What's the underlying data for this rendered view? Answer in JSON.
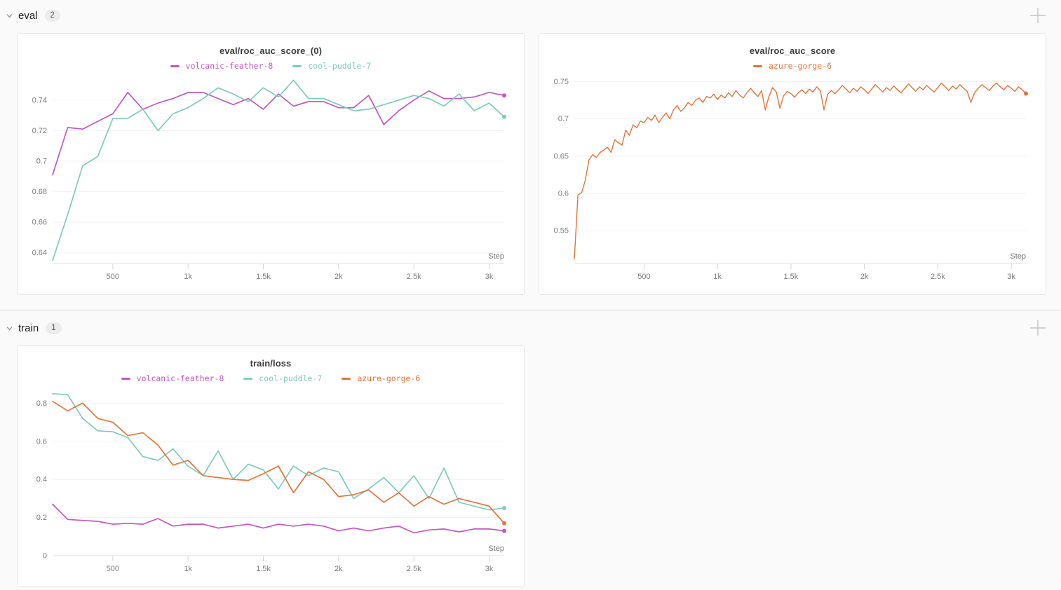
{
  "sections": [
    {
      "label": "eval",
      "count": "2"
    },
    {
      "label": "train",
      "count": "1"
    }
  ],
  "colors": {
    "magenta": "#C557BD",
    "teal": "#7FCBBC",
    "orange": "#E57439",
    "grid": "#f1f1f1",
    "axis": "#e0e0e0",
    "zero_line": "#d7d7d7",
    "tick_mark": "#d4d4d4",
    "tick_label": "#7b7b7b",
    "panel_border": "#e5e5e5",
    "page_bg": "#fafafa"
  },
  "chart_data": [
    {
      "type": "line",
      "title": "eval/roc_auc_score_(0)",
      "xlabel": "Step",
      "grid": true,
      "legend_position": "top",
      "xlim": [
        100,
        3100
      ],
      "ylim": [
        0.633,
        0.7555
      ],
      "xticks": [
        [
          500,
          "500"
        ],
        [
          1000,
          "1k"
        ],
        [
          1500,
          "1.5k"
        ],
        [
          2000,
          "2k"
        ],
        [
          2500,
          "2.5k"
        ],
        [
          3000,
          "3k"
        ]
      ],
      "yticks": [
        [
          0.64,
          "0.64"
        ],
        [
          0.66,
          "0.66"
        ],
        [
          0.68,
          "0.68"
        ],
        [
          0.7,
          "0.7"
        ],
        [
          0.72,
          "0.72"
        ],
        [
          0.74,
          "0.74"
        ]
      ],
      "series": [
        {
          "name": "volcanic-feather-8",
          "color": "#C557BD",
          "x_start": 100,
          "x_step": 100,
          "values": [
            0.691,
            0.722,
            0.721,
            0.726,
            0.731,
            0.745,
            0.734,
            0.738,
            0.741,
            0.745,
            0.745,
            0.741,
            0.737,
            0.741,
            0.734,
            0.744,
            0.736,
            0.739,
            0.739,
            0.735,
            0.735,
            0.743,
            0.724,
            0.733,
            0.74,
            0.746,
            0.741,
            0.741,
            0.742,
            0.745,
            0.743
          ]
        },
        {
          "name": "cool-puddle-7",
          "color": "#7FCBBC",
          "x_start": 100,
          "x_step": 100,
          "values": [
            0.635,
            0.665,
            0.697,
            0.703,
            0.728,
            0.728,
            0.734,
            0.72,
            0.731,
            0.735,
            0.741,
            0.748,
            0.744,
            0.739,
            0.748,
            0.742,
            0.753,
            0.741,
            0.741,
            0.737,
            0.733,
            0.734,
            0.737,
            0.74,
            0.743,
            0.741,
            0.736,
            0.744,
            0.733,
            0.738,
            0.729
          ]
        }
      ]
    },
    {
      "type": "line",
      "title": "eval/roc_auc_score",
      "xlabel": "Step",
      "grid": true,
      "legend_position": "top",
      "xlim": [
        25,
        3100
      ],
      "ylim": [
        0.506,
        0.757
      ],
      "xticks": [
        [
          500,
          "500"
        ],
        [
          1000,
          "1k"
        ],
        [
          1500,
          "1.5k"
        ],
        [
          2000,
          "2k"
        ],
        [
          2500,
          "2.5k"
        ],
        [
          3000,
          "3k"
        ]
      ],
      "yticks": [
        [
          0.55,
          "0.55"
        ],
        [
          0.6,
          "0.6"
        ],
        [
          0.65,
          "0.65"
        ],
        [
          0.7,
          "0.7"
        ],
        [
          0.75,
          "0.75"
        ]
      ],
      "series": [
        {
          "name": "azure-gorge-6",
          "color": "#E57439",
          "x_start": 25,
          "x_step": 25,
          "values": [
            0.512,
            0.598,
            0.601,
            0.618,
            0.645,
            0.652,
            0.648,
            0.655,
            0.658,
            0.662,
            0.655,
            0.672,
            0.668,
            0.665,
            0.685,
            0.678,
            0.692,
            0.688,
            0.697,
            0.695,
            0.702,
            0.698,
            0.705,
            0.695,
            0.702,
            0.708,
            0.7,
            0.712,
            0.718,
            0.71,
            0.715,
            0.722,
            0.718,
            0.725,
            0.728,
            0.722,
            0.73,
            0.728,
            0.733,
            0.726,
            0.732,
            0.728,
            0.735,
            0.73,
            0.738,
            0.732,
            0.728,
            0.735,
            0.741,
            0.735,
            0.73,
            0.738,
            0.712,
            0.73,
            0.742,
            0.736,
            0.714,
            0.731,
            0.737,
            0.734,
            0.729,
            0.735,
            0.739,
            0.734,
            0.74,
            0.736,
            0.743,
            0.738,
            0.712,
            0.733,
            0.738,
            0.734,
            0.739,
            0.745,
            0.74,
            0.735,
            0.741,
            0.737,
            0.743,
            0.739,
            0.734,
            0.74,
            0.746,
            0.741,
            0.736,
            0.742,
            0.738,
            0.744,
            0.739,
            0.735,
            0.741,
            0.747,
            0.742,
            0.737,
            0.743,
            0.739,
            0.745,
            0.74,
            0.736,
            0.742,
            0.748,
            0.743,
            0.738,
            0.744,
            0.74,
            0.746,
            0.741,
            0.737,
            0.722,
            0.735,
            0.741,
            0.746,
            0.742,
            0.738,
            0.744,
            0.748,
            0.743,
            0.739,
            0.745,
            0.741,
            0.737,
            0.743,
            0.739,
            0.734
          ]
        }
      ]
    },
    {
      "type": "line",
      "title": "train/loss",
      "xlabel": "Step",
      "grid": true,
      "legend_position": "top",
      "xlim": [
        100,
        3100
      ],
      "ylim": [
        0,
        0.875
      ],
      "xticks": [
        [
          500,
          "500"
        ],
        [
          1000,
          "1k"
        ],
        [
          1500,
          "1.5k"
        ],
        [
          2000,
          "2k"
        ],
        [
          2500,
          "2.5k"
        ],
        [
          3000,
          "3k"
        ]
      ],
      "yticks": [
        [
          0,
          "0"
        ],
        [
          0.2,
          "0.2"
        ],
        [
          0.4,
          "0.4"
        ],
        [
          0.6,
          "0.6"
        ],
        [
          0.8,
          "0.8"
        ]
      ],
      "series": [
        {
          "name": "volcanic-feather-8",
          "color": "#C557BD",
          "x_start": 100,
          "x_step": 100,
          "values": [
            0.27,
            0.19,
            0.185,
            0.18,
            0.165,
            0.17,
            0.165,
            0.195,
            0.155,
            0.165,
            0.165,
            0.145,
            0.155,
            0.165,
            0.145,
            0.165,
            0.155,
            0.165,
            0.155,
            0.13,
            0.145,
            0.13,
            0.145,
            0.155,
            0.12,
            0.135,
            0.14,
            0.125,
            0.14,
            0.14,
            0.13
          ]
        },
        {
          "name": "cool-puddle-7",
          "color": "#7FCBBC",
          "x_start": 100,
          "x_step": 100,
          "values": [
            0.85,
            0.845,
            0.72,
            0.655,
            0.65,
            0.62,
            0.52,
            0.5,
            0.56,
            0.47,
            0.42,
            0.55,
            0.4,
            0.48,
            0.45,
            0.35,
            0.47,
            0.42,
            0.46,
            0.44,
            0.3,
            0.35,
            0.41,
            0.33,
            0.42,
            0.3,
            0.46,
            0.28,
            0.26,
            0.24,
            0.25
          ]
        },
        {
          "name": "azure-gorge-6",
          "color": "#E57439",
          "x_start": 100,
          "x_step": 100,
          "values": [
            0.81,
            0.76,
            0.8,
            0.72,
            0.7,
            0.63,
            0.645,
            0.58,
            0.475,
            0.5,
            0.42,
            0.41,
            0.4,
            0.395,
            0.43,
            0.47,
            0.33,
            0.44,
            0.4,
            0.31,
            0.32,
            0.345,
            0.28,
            0.33,
            0.26,
            0.31,
            0.27,
            0.3,
            0.28,
            0.26,
            0.17
          ]
        }
      ]
    }
  ]
}
